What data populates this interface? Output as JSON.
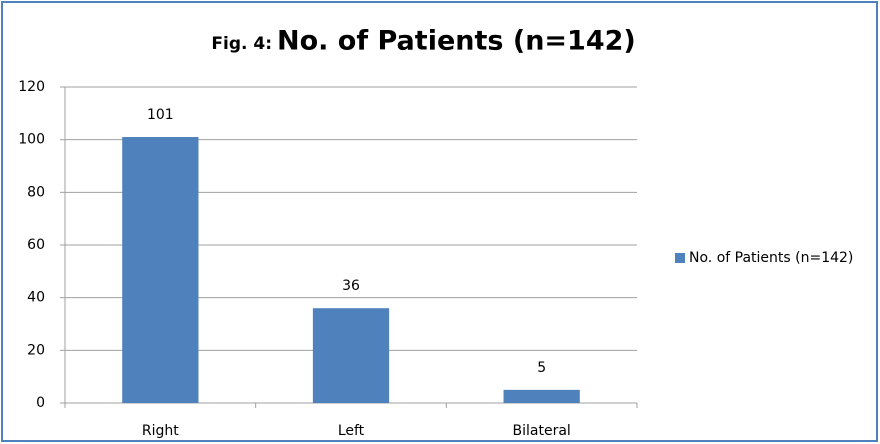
{
  "chart_data": {
    "type": "bar",
    "figure_label": "Fig. 4:",
    "title": "No. of Patients (n=142)",
    "categories": [
      "Right",
      "Left",
      "Bilateral"
    ],
    "series": [
      {
        "name": "No. of Patients (n=142)",
        "color": "#4f81bd",
        "values": [
          101,
          36,
          5
        ]
      }
    ],
    "ylim": [
      0,
      120
    ],
    "yticks": [
      0,
      20,
      40,
      60,
      80,
      100,
      120
    ],
    "grid": true,
    "legend": "right",
    "data_labels": true
  }
}
